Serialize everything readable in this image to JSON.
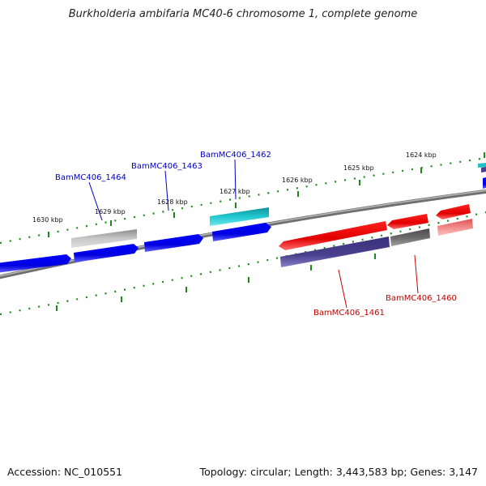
{
  "title": "Burkholderia ambifaria MC40-6 chromosome 1, complete genome",
  "footer": {
    "accession": "Accession: NC_010551",
    "summary": "Topology: circular; Length: 3,443,583 bp; Genes: 3,147"
  },
  "colors": {
    "backbone": "#7a7a7a",
    "tick": "#1a8a1a",
    "forward_label": "#0000c8",
    "reverse_label": "#c80000"
  },
  "ticks": [
    {
      "kbp": 1630,
      "label": "1630 kbp"
    },
    {
      "kbp": 1629,
      "label": "1629 kbp"
    },
    {
      "kbp": 1628,
      "label": "1628 kbp"
    },
    {
      "kbp": 1627,
      "label": "1627 kbp"
    },
    {
      "kbp": 1626,
      "label": "1626 kbp"
    },
    {
      "kbp": 1625,
      "label": "1625 kbp"
    },
    {
      "kbp": 1624,
      "label": "1624 kbp"
    }
  ],
  "genes": [
    {
      "label": "BamMC406_1464",
      "color": "#b5b5b5"
    },
    {
      "label": "BamMC406_1463",
      "color": "#0000e6"
    },
    {
      "label": "BamMC406_1462",
      "color": "#20c0c8"
    },
    {
      "label": "BamMC406_1461",
      "color": "#4a3f8c"
    },
    {
      "label": "BamMC406_1460",
      "color": "#6a6a6a"
    }
  ]
}
